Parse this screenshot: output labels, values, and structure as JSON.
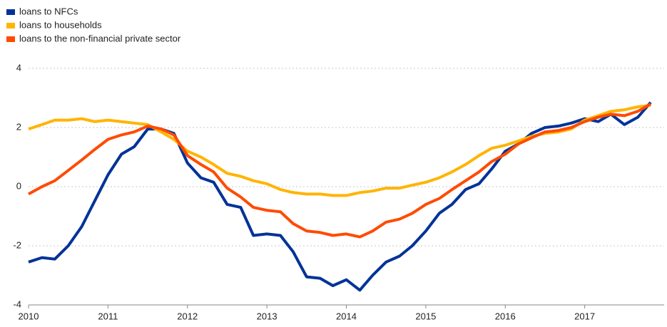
{
  "chart_data": {
    "type": "line",
    "x": [
      2010,
      2010.17,
      2010.33,
      2010.5,
      2010.67,
      2010.83,
      2011,
      2011.17,
      2011.33,
      2011.5,
      2011.67,
      2011.83,
      2012,
      2012.17,
      2012.33,
      2012.5,
      2012.67,
      2012.83,
      2013,
      2013.17,
      2013.33,
      2013.5,
      2013.67,
      2013.83,
      2014,
      2014.17,
      2014.33,
      2014.5,
      2014.67,
      2014.83,
      2015,
      2015.17,
      2015.33,
      2015.5,
      2015.67,
      2015.83,
      2016,
      2016.17,
      2016.33,
      2016.5,
      2016.67,
      2016.83,
      2017,
      2017.17,
      2017.33,
      2017.5,
      2017.67,
      2017.83
    ],
    "series": [
      {
        "name": "loans to NFCs",
        "color": "#003299",
        "values": [
          -2.55,
          -2.4,
          -2.45,
          -2.0,
          -1.35,
          -0.5,
          0.4,
          1.1,
          1.35,
          1.95,
          1.95,
          1.8,
          0.8,
          0.3,
          0.15,
          -0.6,
          -0.7,
          -1.65,
          -1.6,
          -1.65,
          -2.2,
          -3.05,
          -3.1,
          -3.35,
          -3.15,
          -3.5,
          -3.0,
          -2.55,
          -2.35,
          -2.0,
          -1.5,
          -0.9,
          -0.6,
          -0.1,
          0.1,
          0.6,
          1.2,
          1.45,
          1.8,
          2.0,
          2.05,
          2.15,
          2.3,
          2.2,
          2.45,
          2.1,
          2.35,
          2.85
        ]
      },
      {
        "name": "loans to households",
        "color": "#ffb400",
        "values": [
          1.95,
          2.1,
          2.25,
          2.25,
          2.3,
          2.2,
          2.25,
          2.2,
          2.15,
          2.1,
          1.85,
          1.6,
          1.2,
          1.0,
          0.75,
          0.45,
          0.35,
          0.2,
          0.1,
          -0.1,
          -0.2,
          -0.25,
          -0.25,
          -0.3,
          -0.3,
          -0.2,
          -0.15,
          -0.05,
          -0.05,
          0.05,
          0.15,
          0.3,
          0.5,
          0.75,
          1.05,
          1.3,
          1.4,
          1.55,
          1.7,
          1.8,
          1.85,
          1.95,
          2.25,
          2.4,
          2.55,
          2.6,
          2.7,
          2.75
        ]
      },
      {
        "name": "loans to the non-financial private sector",
        "color": "#ff4b00",
        "values": [
          -0.25,
          0.0,
          0.2,
          0.55,
          0.9,
          1.25,
          1.6,
          1.75,
          1.85,
          2.05,
          1.95,
          1.75,
          1.05,
          0.75,
          0.5,
          -0.05,
          -0.35,
          -0.7,
          -0.8,
          -0.85,
          -1.25,
          -1.5,
          -1.55,
          -1.65,
          -1.6,
          -1.7,
          -1.5,
          -1.2,
          -1.1,
          -0.9,
          -0.6,
          -0.4,
          -0.1,
          0.2,
          0.5,
          0.85,
          1.1,
          1.45,
          1.65,
          1.85,
          1.9,
          2.0,
          2.2,
          2.35,
          2.45,
          2.4,
          2.55,
          2.8
        ]
      }
    ],
    "xlim": [
      2010,
      2018
    ],
    "xticks": [
      2010,
      2011,
      2012,
      2013,
      2014,
      2015,
      2016,
      2017
    ],
    "ylim": [
      -4,
      4
    ],
    "yticks": [
      -4,
      -2,
      0,
      2,
      4
    ],
    "grid": true,
    "legend": "top-left"
  }
}
